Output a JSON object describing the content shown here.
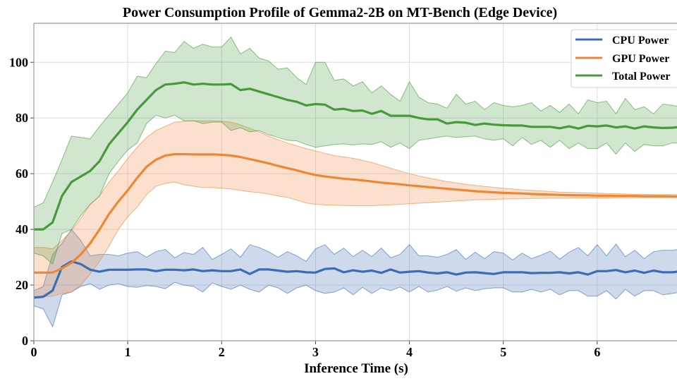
{
  "chart_data": {
    "type": "line",
    "title": "Power Consumption Profile of Gemma2-2B on MT-Bench (Edge Device)",
    "xlabel": "Inference Time (s)",
    "xlim": [
      0,
      6.85
    ],
    "ylim": [
      0,
      114
    ],
    "xticks": [
      0,
      1,
      2,
      3,
      4,
      5,
      6
    ],
    "yticks": [
      0,
      20,
      40,
      60,
      80,
      100
    ],
    "grid": true,
    "legend_position": "top-right",
    "x_start": 0,
    "x_step": 0.1,
    "series": [
      {
        "name": "CPU Power",
        "color": "#3b6db4",
        "mean": [
          15.5,
          15.8,
          18,
          26.5,
          28.5,
          27.5,
          25.5,
          24.8,
          25.5,
          25.5,
          25.5,
          25.6,
          25.6,
          25,
          25.5,
          25.5,
          25.3,
          25.6,
          25,
          25.3,
          25,
          25,
          25.6,
          24,
          25.6,
          25.6,
          25.2,
          24.8,
          25,
          24.6,
          24.5,
          25.8,
          26,
          24.6,
          25.3,
          24.8,
          25.2,
          24.4,
          25.6,
          24.5,
          24.8,
          25,
          24.5,
          24.2,
          24.6,
          23.8,
          24.5,
          24.6,
          24.3,
          24,
          24.6,
          24.6,
          24.6,
          24.3,
          24.4,
          24.4,
          24.6,
          24.2,
          24.6,
          23.8,
          25,
          25,
          25.4,
          24.6,
          25.2,
          24.4,
          25.2,
          24.6,
          24.6,
          25
        ],
        "lower": [
          12.5,
          11.5,
          5,
          16.5,
          17.5,
          19.5,
          20.5,
          18.5,
          20,
          20.5,
          19.5,
          19.2,
          19.8,
          19.5,
          18.7,
          21,
          20,
          19.5,
          17.5,
          20.8,
          19.5,
          18.5,
          20,
          18.5,
          17.5,
          20,
          19,
          17,
          19,
          20,
          18,
          17,
          17.5,
          19,
          16.5,
          19.2,
          17,
          19,
          18,
          19.3,
          17.5,
          19.5,
          17.5,
          18.2,
          19.5,
          17.8,
          19,
          18,
          18.7,
          19,
          19,
          17.5,
          17.5,
          18.5,
          17.5,
          18.5,
          16.5,
          18,
          18,
          16,
          16,
          18,
          15,
          18.5,
          16,
          18,
          18,
          16.5,
          17,
          17.5
        ],
        "upper": [
          18,
          19.5,
          31,
          35,
          40,
          36,
          30.5,
          31,
          31,
          30.5,
          31.5,
          32,
          30,
          32,
          32.8,
          29.8,
          31.7,
          31,
          33.5,
          29.2,
          31,
          33,
          30,
          34.5,
          33.5,
          32,
          30,
          32,
          30.5,
          28.5,
          33,
          34.5,
          31,
          33.3,
          30.2,
          32.5,
          30.2,
          33.3,
          29.8,
          31,
          34.5,
          30.5,
          30.5,
          30,
          31,
          32.7,
          29.2,
          31.8,
          29.5,
          32,
          31.5,
          29,
          31.5,
          29.5,
          30.7,
          32.2,
          29.3,
          31.8,
          33.5,
          30.5,
          34.5,
          30.5,
          34.7,
          30.2,
          32.5,
          29.5,
          32,
          32.5,
          32.5,
          33
        ]
      },
      {
        "name": "GPU Power",
        "color": "#ef8636",
        "mean": [
          24.5,
          24.5,
          24.5,
          26,
          28,
          31,
          35,
          40,
          45.5,
          50,
          54,
          58.5,
          62.5,
          65,
          66.5,
          67,
          67,
          66.9,
          66.9,
          66.9,
          66.8,
          66.5,
          66,
          65.2,
          64.5,
          63.7,
          62.8,
          62,
          61.2,
          60.3,
          59.5,
          59,
          58.6,
          58.2,
          57.9,
          57.6,
          57.2,
          56.8,
          56.5,
          56.2,
          55.8,
          55.5,
          55.2,
          54.9,
          54.6,
          54.3,
          54,
          53.7,
          53.5,
          53.3,
          53.1,
          53,
          52.9,
          52.7,
          52.6,
          52.5,
          52.4,
          52.3,
          52.2,
          52.2,
          52.1,
          52.1,
          52,
          52,
          52,
          51.9,
          51.9,
          51.9,
          51.8,
          51.8
        ],
        "lower": [
          15.5,
          15.8,
          16,
          17,
          17.5,
          20,
          24,
          28.5,
          34,
          40,
          44.5,
          48,
          52.5,
          55.5,
          56.5,
          57,
          56,
          55.5,
          55,
          55,
          54.8,
          54.5,
          54,
          53.5,
          53.2,
          52.7,
          52,
          51.5,
          50.5,
          49.5,
          49,
          48.8,
          48.7,
          48.6,
          48.5,
          48.5,
          48.5,
          48.7,
          48.8,
          49,
          49.2,
          49.4,
          49.6,
          49.8,
          50,
          50.2,
          50.4,
          50.6,
          50.7,
          50.8,
          50.9,
          51,
          51,
          51.1,
          51.1,
          51.2,
          51.2,
          51.2,
          51.3,
          51.3,
          51.3,
          51.3,
          51.4,
          51.4,
          51.4,
          51.4,
          51.4,
          51.4,
          51.4,
          51.4
        ],
        "upper": [
          33.5,
          33.5,
          33,
          36,
          39.5,
          44,
          49,
          52,
          57,
          61,
          65.5,
          69.5,
          73,
          75.5,
          77,
          78.5,
          78.8,
          79,
          79,
          79,
          78.8,
          78.5,
          77.5,
          76.3,
          75,
          73.5,
          72.2,
          71,
          70,
          69,
          68.2,
          67.3,
          66.5,
          66,
          65.5,
          64.8,
          64,
          63,
          62,
          61,
          60,
          59.2,
          58.5,
          57.8,
          57.2,
          56.7,
          56.2,
          55.8,
          55.4,
          55.1,
          54.8,
          54.5,
          54.2,
          54,
          53.8,
          53.6,
          53.4,
          53.3,
          53.2,
          53.1,
          53,
          52.9,
          52.8,
          52.7,
          52.6,
          52.6,
          52.5,
          52.5,
          52.5,
          52.5
        ]
      },
      {
        "name": "Total Power",
        "color": "#479a3a",
        "mean": [
          40,
          40,
          42.5,
          52,
          57,
          59,
          61,
          64.5,
          70.5,
          74.5,
          78.5,
          83,
          86.5,
          90,
          92,
          92.3,
          92.8,
          92,
          92.3,
          92,
          92,
          92.2,
          90,
          90.5,
          89.5,
          88.5,
          87.5,
          86.5,
          85.8,
          84.5,
          85,
          84.8,
          83,
          83.3,
          82.5,
          82.7,
          81.5,
          82.5,
          80.8,
          80.8,
          80.8,
          80,
          79.5,
          79.5,
          78,
          78.5,
          78.3,
          77.5,
          78,
          77.6,
          77.4,
          77.3,
          77.3,
          76.8,
          76.8,
          76.8,
          76.3,
          77,
          76.2,
          77.2,
          77,
          77.3,
          76.6,
          77,
          76.2,
          77,
          76.6,
          76.4,
          76.5,
          76.8
        ],
        "lower": [
          31.5,
          30.5,
          27.5,
          38.5,
          40,
          45,
          49,
          52,
          60,
          64.5,
          68.5,
          71,
          78,
          81,
          80,
          81,
          79,
          79,
          78,
          78.5,
          78.5,
          75.5,
          76.5,
          75,
          75.5,
          74,
          73,
          72,
          71.8,
          70.5,
          69.5,
          70,
          70.5,
          70.7,
          70.3,
          70.7,
          70.5,
          71.5,
          69.5,
          71,
          69,
          72,
          72.5,
          73,
          73.5,
          73,
          73.3,
          73.5,
          72.5,
          72,
          72.5,
          70,
          73,
          70.5,
          72,
          69.5,
          72,
          69,
          71,
          69,
          69,
          71,
          67,
          71,
          68,
          70.5,
          70,
          70,
          71,
          71
        ],
        "upper": [
          48,
          49.5,
          57,
          65,
          73.5,
          73,
          72.5,
          77,
          81,
          85,
          89,
          95,
          94.5,
          99.5,
          104,
          103.5,
          107.5,
          105,
          106.5,
          105.5,
          105.5,
          109,
          103,
          105,
          101.5,
          100.5,
          97.5,
          98,
          94.5,
          92,
          100,
          100,
          93.5,
          94,
          91.5,
          93,
          89,
          91.5,
          88.5,
          86,
          93,
          87.5,
          85.5,
          85,
          83.5,
          88.5,
          85,
          86,
          83,
          85.5,
          84.5,
          84,
          84.5,
          85.5,
          82.5,
          84.5,
          82,
          85,
          81.5,
          86.5,
          85.5,
          86,
          81.5,
          87,
          83,
          84,
          81.5,
          85,
          84.5,
          84
        ]
      }
    ]
  }
}
